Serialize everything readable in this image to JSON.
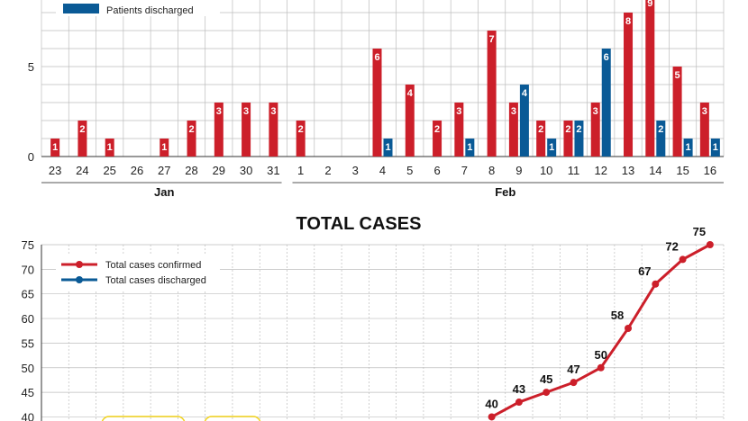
{
  "colors": {
    "confirmed": "#cc1f2a",
    "discharged": "#0a5a96",
    "grid": "#bdbdbd",
    "highlight": "#f2d21b"
  },
  "chart_data": [
    {
      "type": "bar",
      "title": "",
      "legend": {
        "placement": "top-left",
        "entries": [
          "Patients discharged"
        ]
      },
      "months": [
        "Jan",
        "Feb"
      ],
      "categories": [
        "23",
        "24",
        "25",
        "26",
        "27",
        "28",
        "29",
        "30",
        "31",
        "1",
        "2",
        "3",
        "4",
        "5",
        "6",
        "7",
        "8",
        "9",
        "10",
        "11",
        "12",
        "13",
        "14",
        "15",
        "16"
      ],
      "series": [
        {
          "name": "",
          "color_key": "confirmed",
          "values": [
            1,
            2,
            1,
            0,
            1,
            2,
            3,
            3,
            3,
            2,
            0,
            0,
            6,
            4,
            2,
            3,
            7,
            3,
            2,
            2,
            3,
            8,
            9,
            5,
            3
          ]
        },
        {
          "name": "Patients discharged",
          "color_key": "discharged",
          "values": [
            0,
            0,
            0,
            0,
            0,
            0,
            0,
            0,
            0,
            0,
            0,
            0,
            1,
            0,
            0,
            1,
            0,
            4,
            1,
            2,
            6,
            0,
            2,
            1,
            1
          ]
        }
      ],
      "ylim": [
        0,
        9.5
      ],
      "yticks": [
        0,
        5
      ],
      "grid": true
    },
    {
      "type": "line",
      "title": "TOTAL CASES",
      "legend": {
        "placement": "top-left",
        "entries": [
          "Total cases confirmed",
          "Total cases discharged"
        ]
      },
      "series": [
        {
          "name": "Total cases confirmed",
          "color_key": "confirmed",
          "x": [
            "9",
            "10",
            "11",
            "12",
            "13",
            "14",
            "15",
            "16",
            "17"
          ],
          "values": [
            40,
            43,
            45,
            47,
            50,
            58,
            67,
            72,
            75
          ],
          "labels": [
            "40",
            "43",
            "45",
            "47",
            "50",
            "58",
            "67",
            "72",
            "75"
          ]
        }
      ],
      "yticks": [
        40,
        45,
        50,
        55,
        60,
        65,
        70,
        75
      ],
      "ylim": [
        40,
        75
      ],
      "grid": true
    }
  ]
}
